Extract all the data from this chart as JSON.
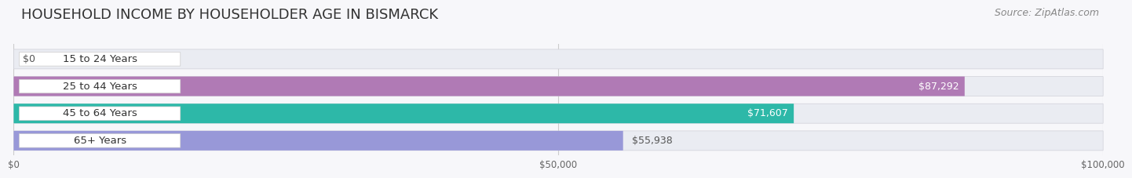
{
  "title": "HOUSEHOLD INCOME BY HOUSEHOLDER AGE IN BISMARCK",
  "source": "Source: ZipAtlas.com",
  "categories": [
    "15 to 24 Years",
    "25 to 44 Years",
    "45 to 64 Years",
    "65+ Years"
  ],
  "values": [
    0,
    87292,
    71607,
    55938
  ],
  "labels": [
    "$0",
    "$87,292",
    "$71,607",
    "$55,938"
  ],
  "bar_colors": [
    "#a8c8e8",
    "#b07ab5",
    "#2db8a8",
    "#9898d8"
  ],
  "bar_bg_color": "#eaecf2",
  "xmax": 100000,
  "xticks": [
    0,
    50000,
    100000
  ],
  "xticklabels": [
    "$0",
    "$50,000",
    "$100,000"
  ],
  "title_fontsize": 13,
  "source_fontsize": 9,
  "value_label_fontsize": 9,
  "cat_label_fontsize": 9.5,
  "background_color": "#f7f7fa"
}
